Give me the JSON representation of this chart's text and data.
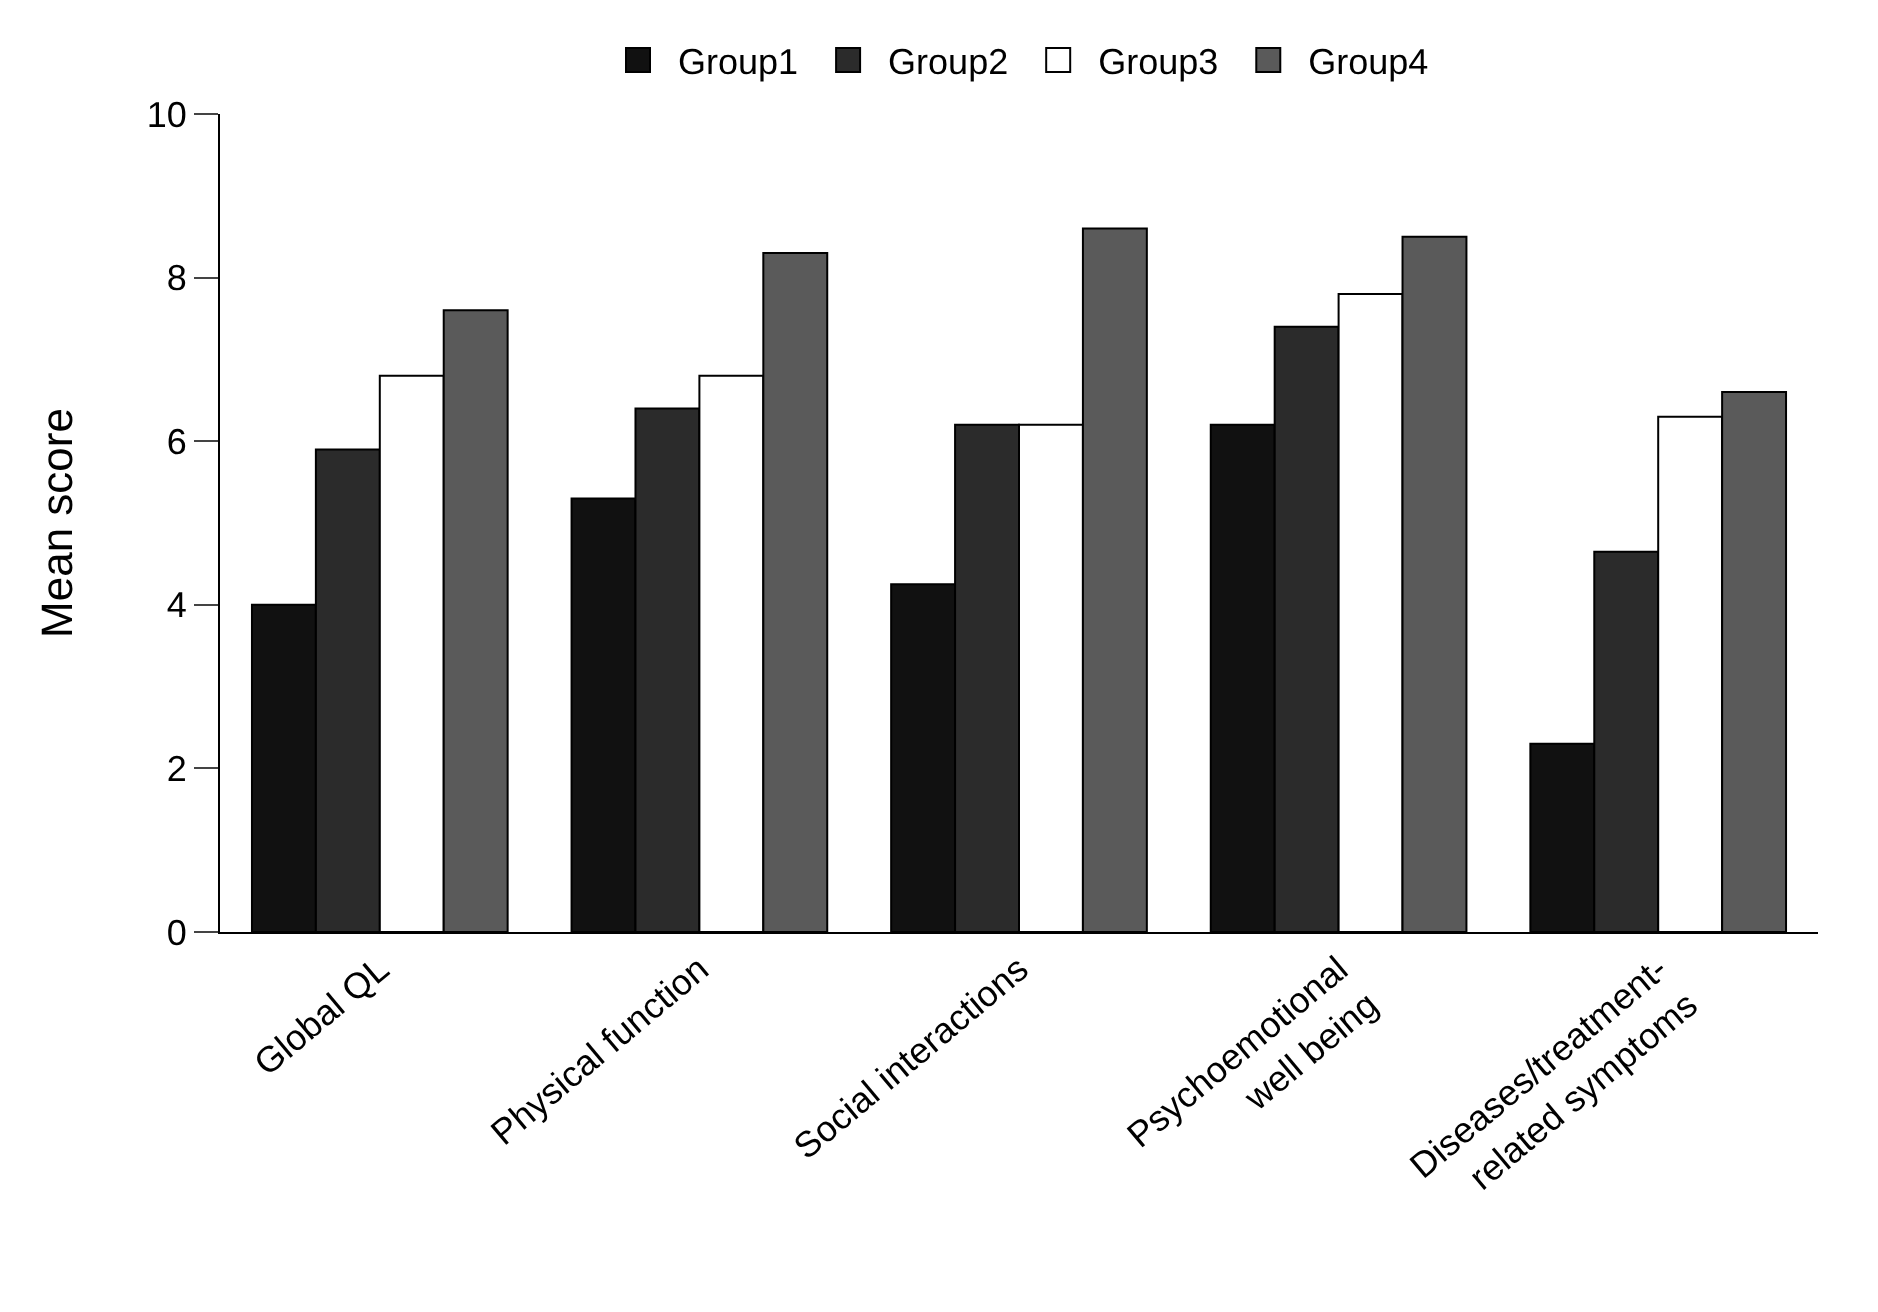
{
  "chart_data": {
    "type": "bar",
    "ylabel": "Mean score",
    "categories": [
      "Global QL",
      "Physical function",
      "Social interactions",
      "Psychoemotional\nwell being",
      "Diseases/treatment-\nrelated symptoms"
    ],
    "series": [
      {
        "name": "Group1",
        "color": "#111111",
        "values": [
          4.0,
          5.3,
          4.25,
          6.2,
          2.3
        ]
      },
      {
        "name": "Group2",
        "color": "#2b2b2b",
        "values": [
          5.9,
          6.4,
          6.2,
          7.4,
          4.65
        ]
      },
      {
        "name": "Group3",
        "color": "#ffffff",
        "values": [
          6.8,
          6.8,
          6.2,
          7.8,
          6.3
        ]
      },
      {
        "name": "Group4",
        "color": "#5a5a5a",
        "values": [
          7.6,
          8.3,
          8.6,
          8.5,
          6.6
        ]
      }
    ],
    "ylim": [
      0,
      10
    ],
    "yticks": [
      0,
      2,
      4,
      6,
      8,
      10
    ],
    "grid": false,
    "legend": "top"
  }
}
